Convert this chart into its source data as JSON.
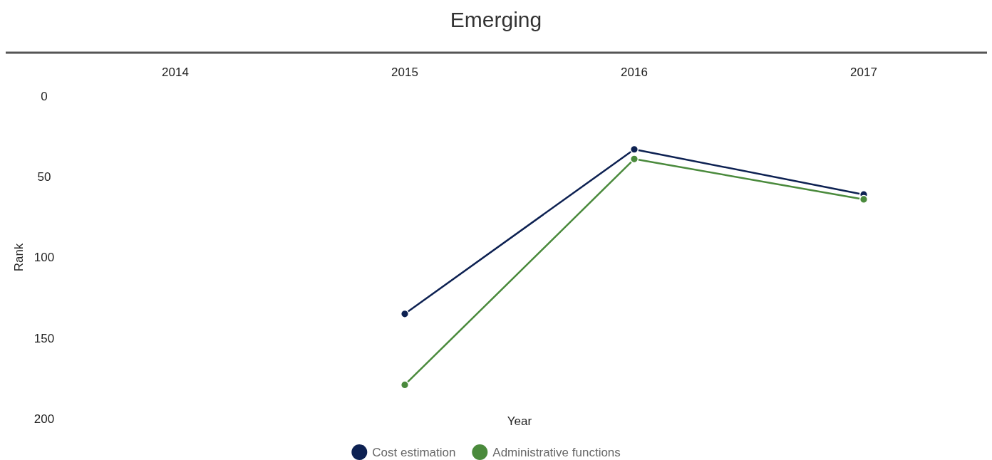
{
  "chart_data": {
    "type": "line",
    "title": "Emerging",
    "xlabel": "Year",
    "ylabel": "Rank",
    "categories": [
      "2014",
      "2015",
      "2016",
      "2017"
    ],
    "ylim": [
      200,
      0
    ],
    "yticks": [
      0,
      50,
      100,
      150,
      200
    ],
    "grid": false,
    "legend": "bottom",
    "marker": "circle",
    "line_style": "solid",
    "series": [
      {
        "name": "Cost estimation",
        "color": "#0d2152",
        "values": [
          null,
          135,
          33,
          61
        ]
      },
      {
        "name": "Administrative functions",
        "color": "#4a8a3c",
        "values": [
          null,
          179,
          39,
          64
        ]
      }
    ]
  }
}
